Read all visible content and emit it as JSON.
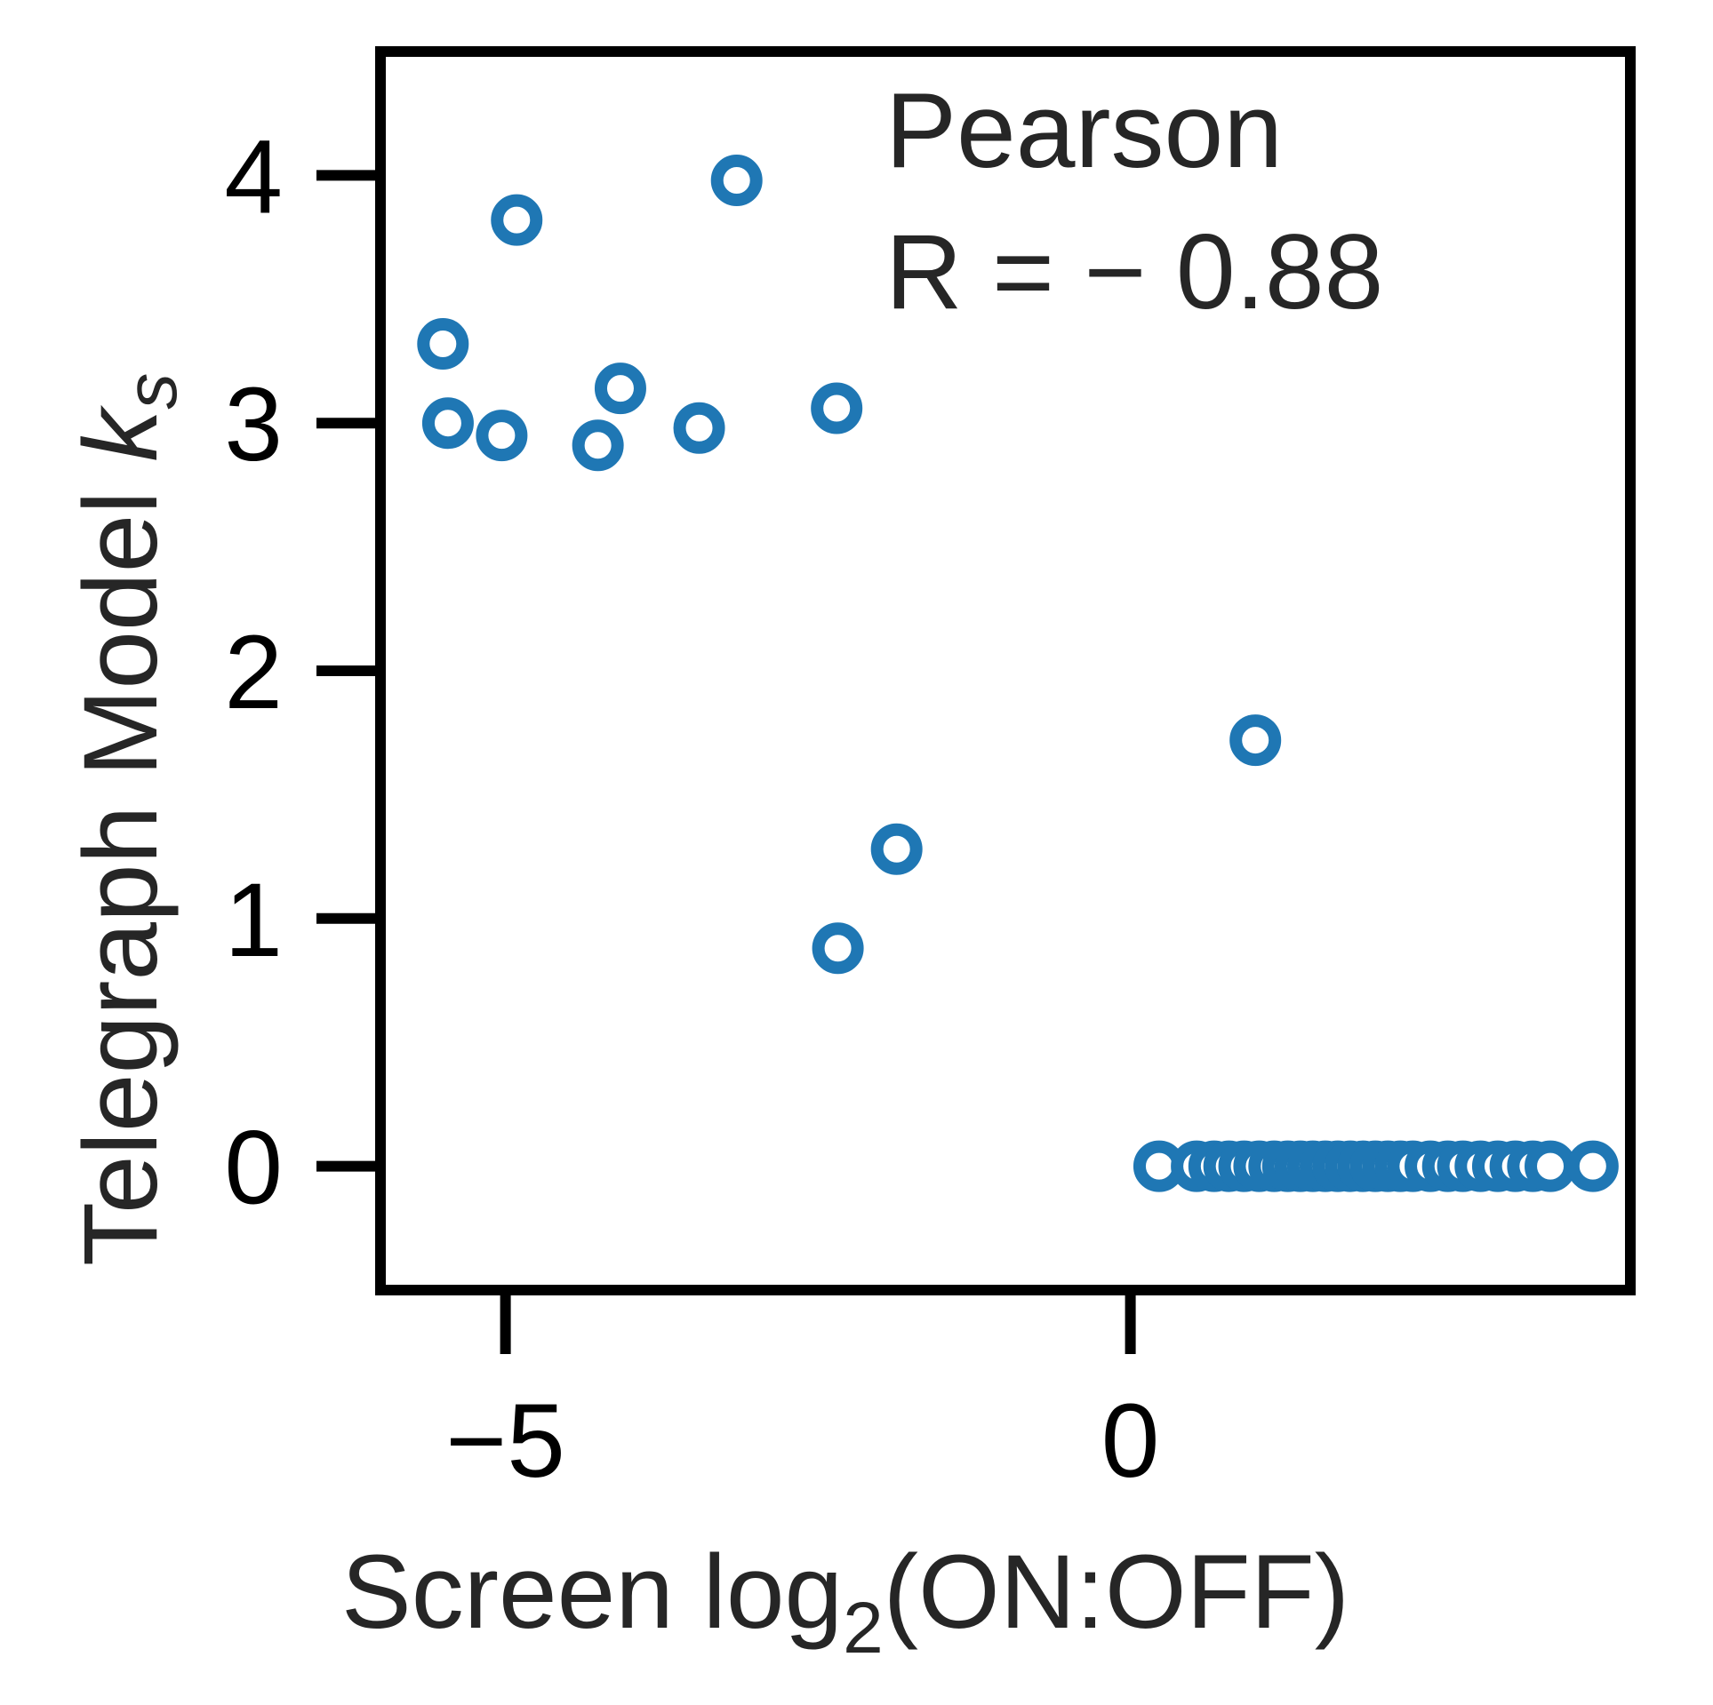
{
  "chart_data": {
    "type": "scatter",
    "xlabel_main": "Screen log",
    "xlabel_sub": "2",
    "xlabel_rest": "(ON:OFF)",
    "ylabel_main": "Telegraph Model ",
    "ylabel_italic": "k",
    "ylabel_sub": "s",
    "xlim": [
      -6.0,
      4.0
    ],
    "ylim": [
      -0.5,
      4.5
    ],
    "xticks": [
      -5,
      0
    ],
    "xtick_labels": [
      "−5",
      "0"
    ],
    "yticks": [
      0,
      1,
      2,
      3,
      4
    ],
    "ytick_labels": [
      "0",
      "1",
      "2",
      "3",
      "4"
    ],
    "grid": false,
    "annotation": [
      "Pearson",
      "R = − 0.88"
    ],
    "marker_color": "#1f77b4",
    "points": [
      {
        "x": -5.5,
        "y": 3.32
      },
      {
        "x": -5.46,
        "y": 3.0
      },
      {
        "x": -5.03,
        "y": 2.95
      },
      {
        "x": -4.91,
        "y": 3.82
      },
      {
        "x": -4.26,
        "y": 2.91
      },
      {
        "x": -4.08,
        "y": 3.14
      },
      {
        "x": -3.45,
        "y": 2.98
      },
      {
        "x": -3.15,
        "y": 3.98
      },
      {
        "x": -2.35,
        "y": 3.06
      },
      {
        "x": -2.34,
        "y": 0.88
      },
      {
        "x": -1.87,
        "y": 1.28
      },
      {
        "x": 1.0,
        "y": 1.72
      },
      {
        "x": 0.23,
        "y": 0.0
      },
      {
        "x": 0.53,
        "y": 0.0
      },
      {
        "x": 0.67,
        "y": 0.0
      },
      {
        "x": 0.79,
        "y": 0.0
      },
      {
        "x": 0.91,
        "y": 0.0
      },
      {
        "x": 1.03,
        "y": 0.0
      },
      {
        "x": 1.15,
        "y": 0.0
      },
      {
        "x": 1.26,
        "y": 0.0
      },
      {
        "x": 1.36,
        "y": 0.0
      },
      {
        "x": 1.46,
        "y": 0.0
      },
      {
        "x": 1.56,
        "y": 0.0
      },
      {
        "x": 1.66,
        "y": 0.0
      },
      {
        "x": 1.76,
        "y": 0.0
      },
      {
        "x": 1.86,
        "y": 0.0
      },
      {
        "x": 1.96,
        "y": 0.0
      },
      {
        "x": 2.06,
        "y": 0.0
      },
      {
        "x": 2.16,
        "y": 0.0
      },
      {
        "x": 2.26,
        "y": 0.0
      },
      {
        "x": 2.4,
        "y": 0.0
      },
      {
        "x": 2.54,
        "y": 0.0
      },
      {
        "x": 2.66,
        "y": 0.0
      },
      {
        "x": 2.8,
        "y": 0.0
      },
      {
        "x": 2.94,
        "y": 0.0
      },
      {
        "x": 3.08,
        "y": 0.0
      },
      {
        "x": 3.22,
        "y": 0.0
      },
      {
        "x": 3.36,
        "y": 0.0
      },
      {
        "x": 3.7,
        "y": 0.0
      }
    ]
  }
}
